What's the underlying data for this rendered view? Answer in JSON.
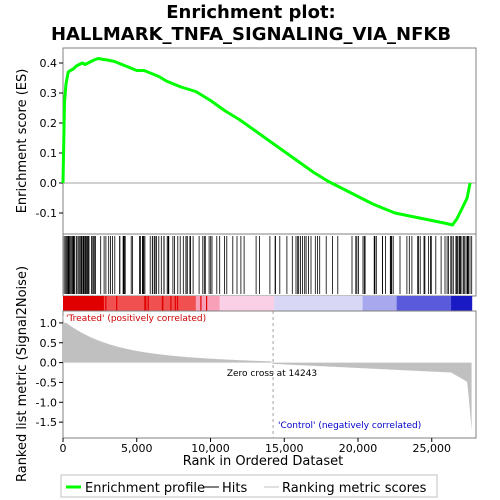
{
  "chart_data": {
    "type": "line",
    "title_line1": "Enrichment plot:",
    "title_line2": "HALLMARK_TNFA_SIGNALING_VIA_NFKB",
    "ylabel_top": "Enrichment score (ES)",
    "ylabel_bottom": "Ranked list metric (Signal2Noise)",
    "xlabel": "Rank in Ordered Dataset",
    "x_range": [
      0,
      28000
    ],
    "x_ticks": [
      0,
      5000,
      10000,
      15000,
      20000,
      25000
    ],
    "x_tick_labels": [
      "0",
      "5,000",
      "10,000",
      "15,000",
      "20,000",
      "25,000"
    ],
    "es_ylim": [
      -0.17,
      0.45
    ],
    "es_ticks": [
      -0.1,
      0.0,
      0.1,
      0.2,
      0.3,
      0.4
    ],
    "es_tick_labels": [
      "-0.1",
      "0.0",
      "0.1",
      "0.2",
      "0.3",
      "0.4"
    ],
    "metric_ylim": [
      -1.9,
      1.3
    ],
    "metric_ticks": [
      -1.5,
      -1.0,
      -0.5,
      0.0,
      0.5,
      1.0
    ],
    "metric_tick_labels": [
      "-1.5",
      "-1.0",
      "-0.5",
      "0.0",
      "0.5",
      "1.0"
    ],
    "series": [
      {
        "name": "Enrichment profile",
        "color": "#00ff00",
        "x": [
          0,
          100,
          200,
          350,
          500,
          700,
          900,
          1100,
          1300,
          1500,
          1700,
          1900,
          2100,
          2400,
          2700,
          3000,
          3500,
          4000,
          4500,
          5000,
          5500,
          6000,
          6500,
          7000,
          7500,
          8000,
          9000,
          10000,
          11000,
          12000,
          13000,
          14000,
          15000,
          16000,
          17000,
          18000,
          19000,
          20000,
          21000,
          22000,
          22500,
          23000,
          23500,
          24000,
          24500,
          25000,
          25500,
          26000,
          26400,
          26700,
          27000,
          27200,
          27400,
          27600
        ],
        "y": [
          0.0,
          0.27,
          0.33,
          0.37,
          0.375,
          0.38,
          0.39,
          0.395,
          0.4,
          0.395,
          0.4,
          0.405,
          0.41,
          0.415,
          0.412,
          0.41,
          0.405,
          0.395,
          0.385,
          0.375,
          0.375,
          0.365,
          0.355,
          0.34,
          0.33,
          0.32,
          0.305,
          0.275,
          0.24,
          0.21,
          0.175,
          0.14,
          0.105,
          0.07,
          0.035,
          0.005,
          -0.02,
          -0.045,
          -0.07,
          -0.09,
          -0.1,
          -0.105,
          -0.11,
          -0.115,
          -0.12,
          -0.125,
          -0.13,
          -0.135,
          -0.14,
          -0.12,
          -0.09,
          -0.07,
          -0.05,
          0.0
        ]
      }
    ],
    "hits_label": "Hits",
    "metric_label": "Ranking metric scores",
    "zero_cross_label": "Zero cross at 14243",
    "zero_cross_x": 14243,
    "treated_label": "'Treated' (positively correlated)",
    "control_label": "'Control' (negatively correlated)",
    "hit_color": "#000000",
    "metric_color": "#c0c0c0",
    "treated_color": "#cc0000",
    "control_color": "#0000cc",
    "colors": [
      "#e00000",
      "#f05050",
      "#f8a0b8",
      "#fad0e6",
      "#d8d8f6",
      "#a8a8ee",
      "#5a5adc",
      "#1a1ac4"
    ]
  },
  "legend": {
    "profile_label": "Enrichment profile",
    "hits_label": "Hits",
    "metric_label": "Ranking metric scores"
  }
}
